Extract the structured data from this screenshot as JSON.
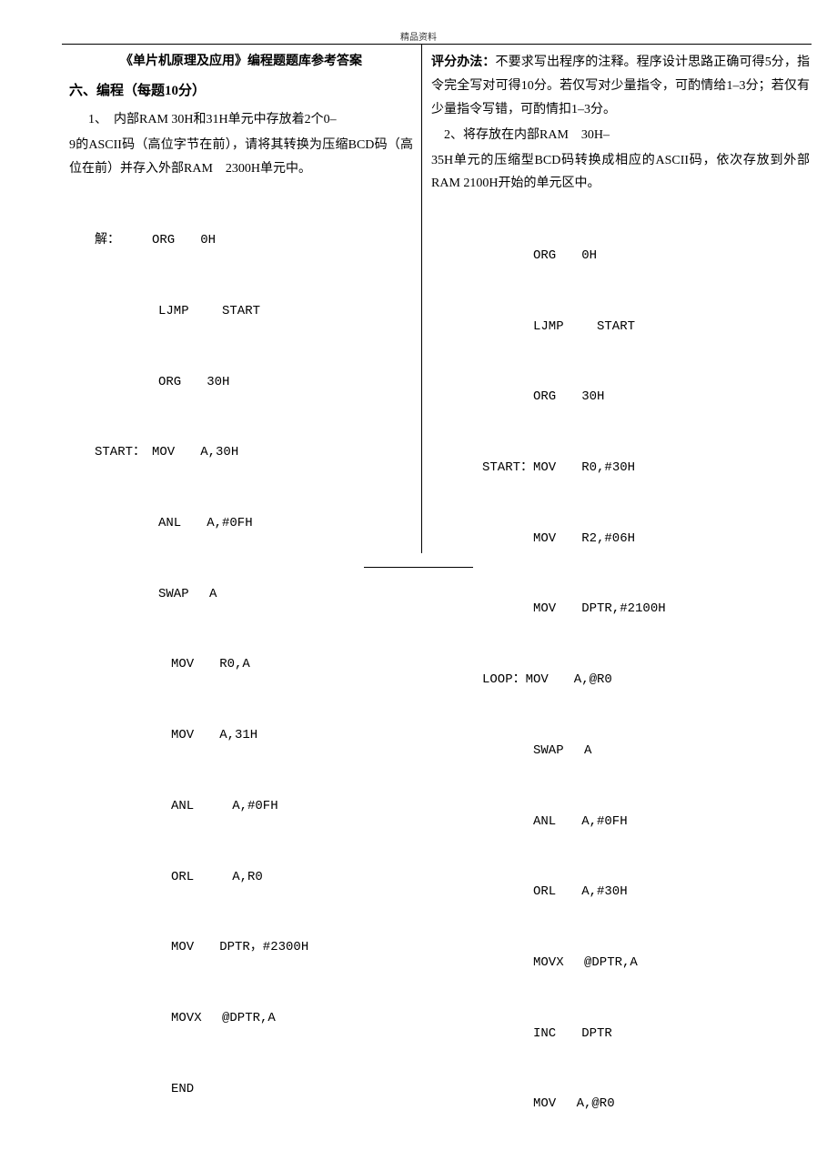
{
  "header": {
    "label": "精品资料"
  },
  "left": {
    "title": "《单片机原理及应用》编程题题库参考答案",
    "section": "六、编程（每题10分）",
    "q1_line1": "1、　内部RAM 30H和31H单元中存放着2个0–",
    "q1_line2": "9的ASCII码（高位字节在前），请将其转换为压缩BCD码（高位在前）并存入外部RAM　2300H单元中。",
    "code": {
      "l1": "　　解：　　　ORG　　0H",
      "l2": "　　　　　　　LJMP　　 START",
      "l3": "　　　　　　　ORG　　30H",
      "l4": "　　START：　MOV　　A,30H",
      "l5": "　　　　　　　ANL　　A,#0FH",
      "l6": "　　　　　　　SWAP　 A",
      "l7": "　　　　　　　　MOV　　R0,A",
      "l8": "　　　　　　　　MOV　　A,31H",
      "l9": "　　　　　　　　ANL　　　A,#0FH",
      "l10": "　　　　　　　　ORL　　　A,R0",
      "l11": "　　　　　　　　MOV　　DPTR，#2300H",
      "l12": "　　　　　　　　MOVX　 @DPTR,A",
      "l13": "　　　　　　　　END"
    }
  },
  "right": {
    "grading_label": "评分办法：",
    "p1": "不要求写出程序的注释。程序设计思路正确可得5分，指令完全写对可得10分。若仅写对少量指令，可酌情给1–3分；若仅有少量指令写错，可酌情扣1–3分。",
    "q2_line1": "2、将存放在内部RAM　30H–",
    "q2_line2": "35H单元的压缩型BCD码转换成相应的ASCII码，依次存放到外部RAM 2100H开始的单元区中。",
    "code": {
      "l1": "　　　　　　　　ORG　　0H",
      "l2": "　　　　　　　　LJMP　　 START",
      "l3": "　　　　　　　　ORG　　30H",
      "l4": "　　　　START：MOV　　R0,#30H",
      "l5": "　　　　　　　　MOV　　R2,#06H",
      "l6": "　　　　　　　　MOV　　DPTR,#2100H",
      "l7": "　　　　LOOP：MOV　　A,@R0",
      "l8": "　　　　　　　　SWAP　 A",
      "l9": "　　　　　　　　ANL　　A,#0FH",
      "l10": "　　　　　　　　ORL　　A,#30H",
      "l11": "　　　　　　　　MOVX　 @DPTR,A",
      "l12": "　　　　　　　　INC　　DPTR",
      "l13": "　　　　　　　　MOV　 A,@R0"
    }
  },
  "colors": {
    "background": "#ffffff",
    "text": "#000000",
    "rule": "#000000"
  },
  "typography": {
    "body_fontsize": 14,
    "title_fontsize": 14,
    "header_small_fontsize": 10,
    "line_height": 1.85
  }
}
